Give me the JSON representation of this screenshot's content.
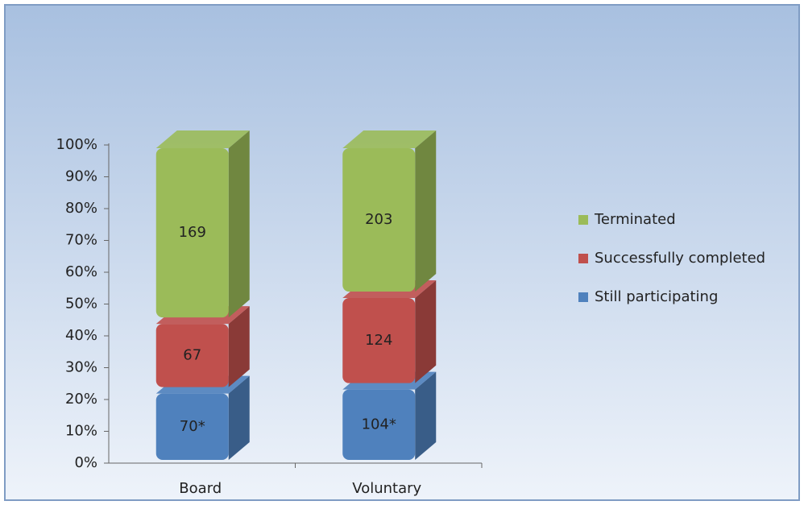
{
  "chart_data": {
    "type": "bar",
    "stacking": "percent",
    "categories": [
      "Board",
      "Voluntary"
    ],
    "series": [
      {
        "name": "Still participating",
        "color": "#4f81bd",
        "values": [
          70,
          104
        ],
        "value_labels": [
          "70*",
          "104*"
        ]
      },
      {
        "name": "Successfully completed",
        "color": "#c0504d",
        "values": [
          67,
          124
        ]
      },
      {
        "name": "Terminated",
        "color": "#9bbb59",
        "values": [
          169,
          203
        ]
      }
    ],
    "ylim": [
      0,
      100
    ],
    "yticks": [
      {
        "value": 0,
        "label": "0%"
      },
      {
        "value": 10,
        "label": "10%"
      },
      {
        "value": 20,
        "label": "20%"
      },
      {
        "value": 30,
        "label": "30%"
      },
      {
        "value": 40,
        "label": "40%"
      },
      {
        "value": 50,
        "label": "50%"
      },
      {
        "value": 60,
        "label": "60%"
      },
      {
        "value": 70,
        "label": "70%"
      },
      {
        "value": 80,
        "label": "80%"
      },
      {
        "value": 90,
        "label": "90%"
      },
      {
        "value": 100,
        "label": "100%"
      }
    ],
    "legend": "right"
  }
}
